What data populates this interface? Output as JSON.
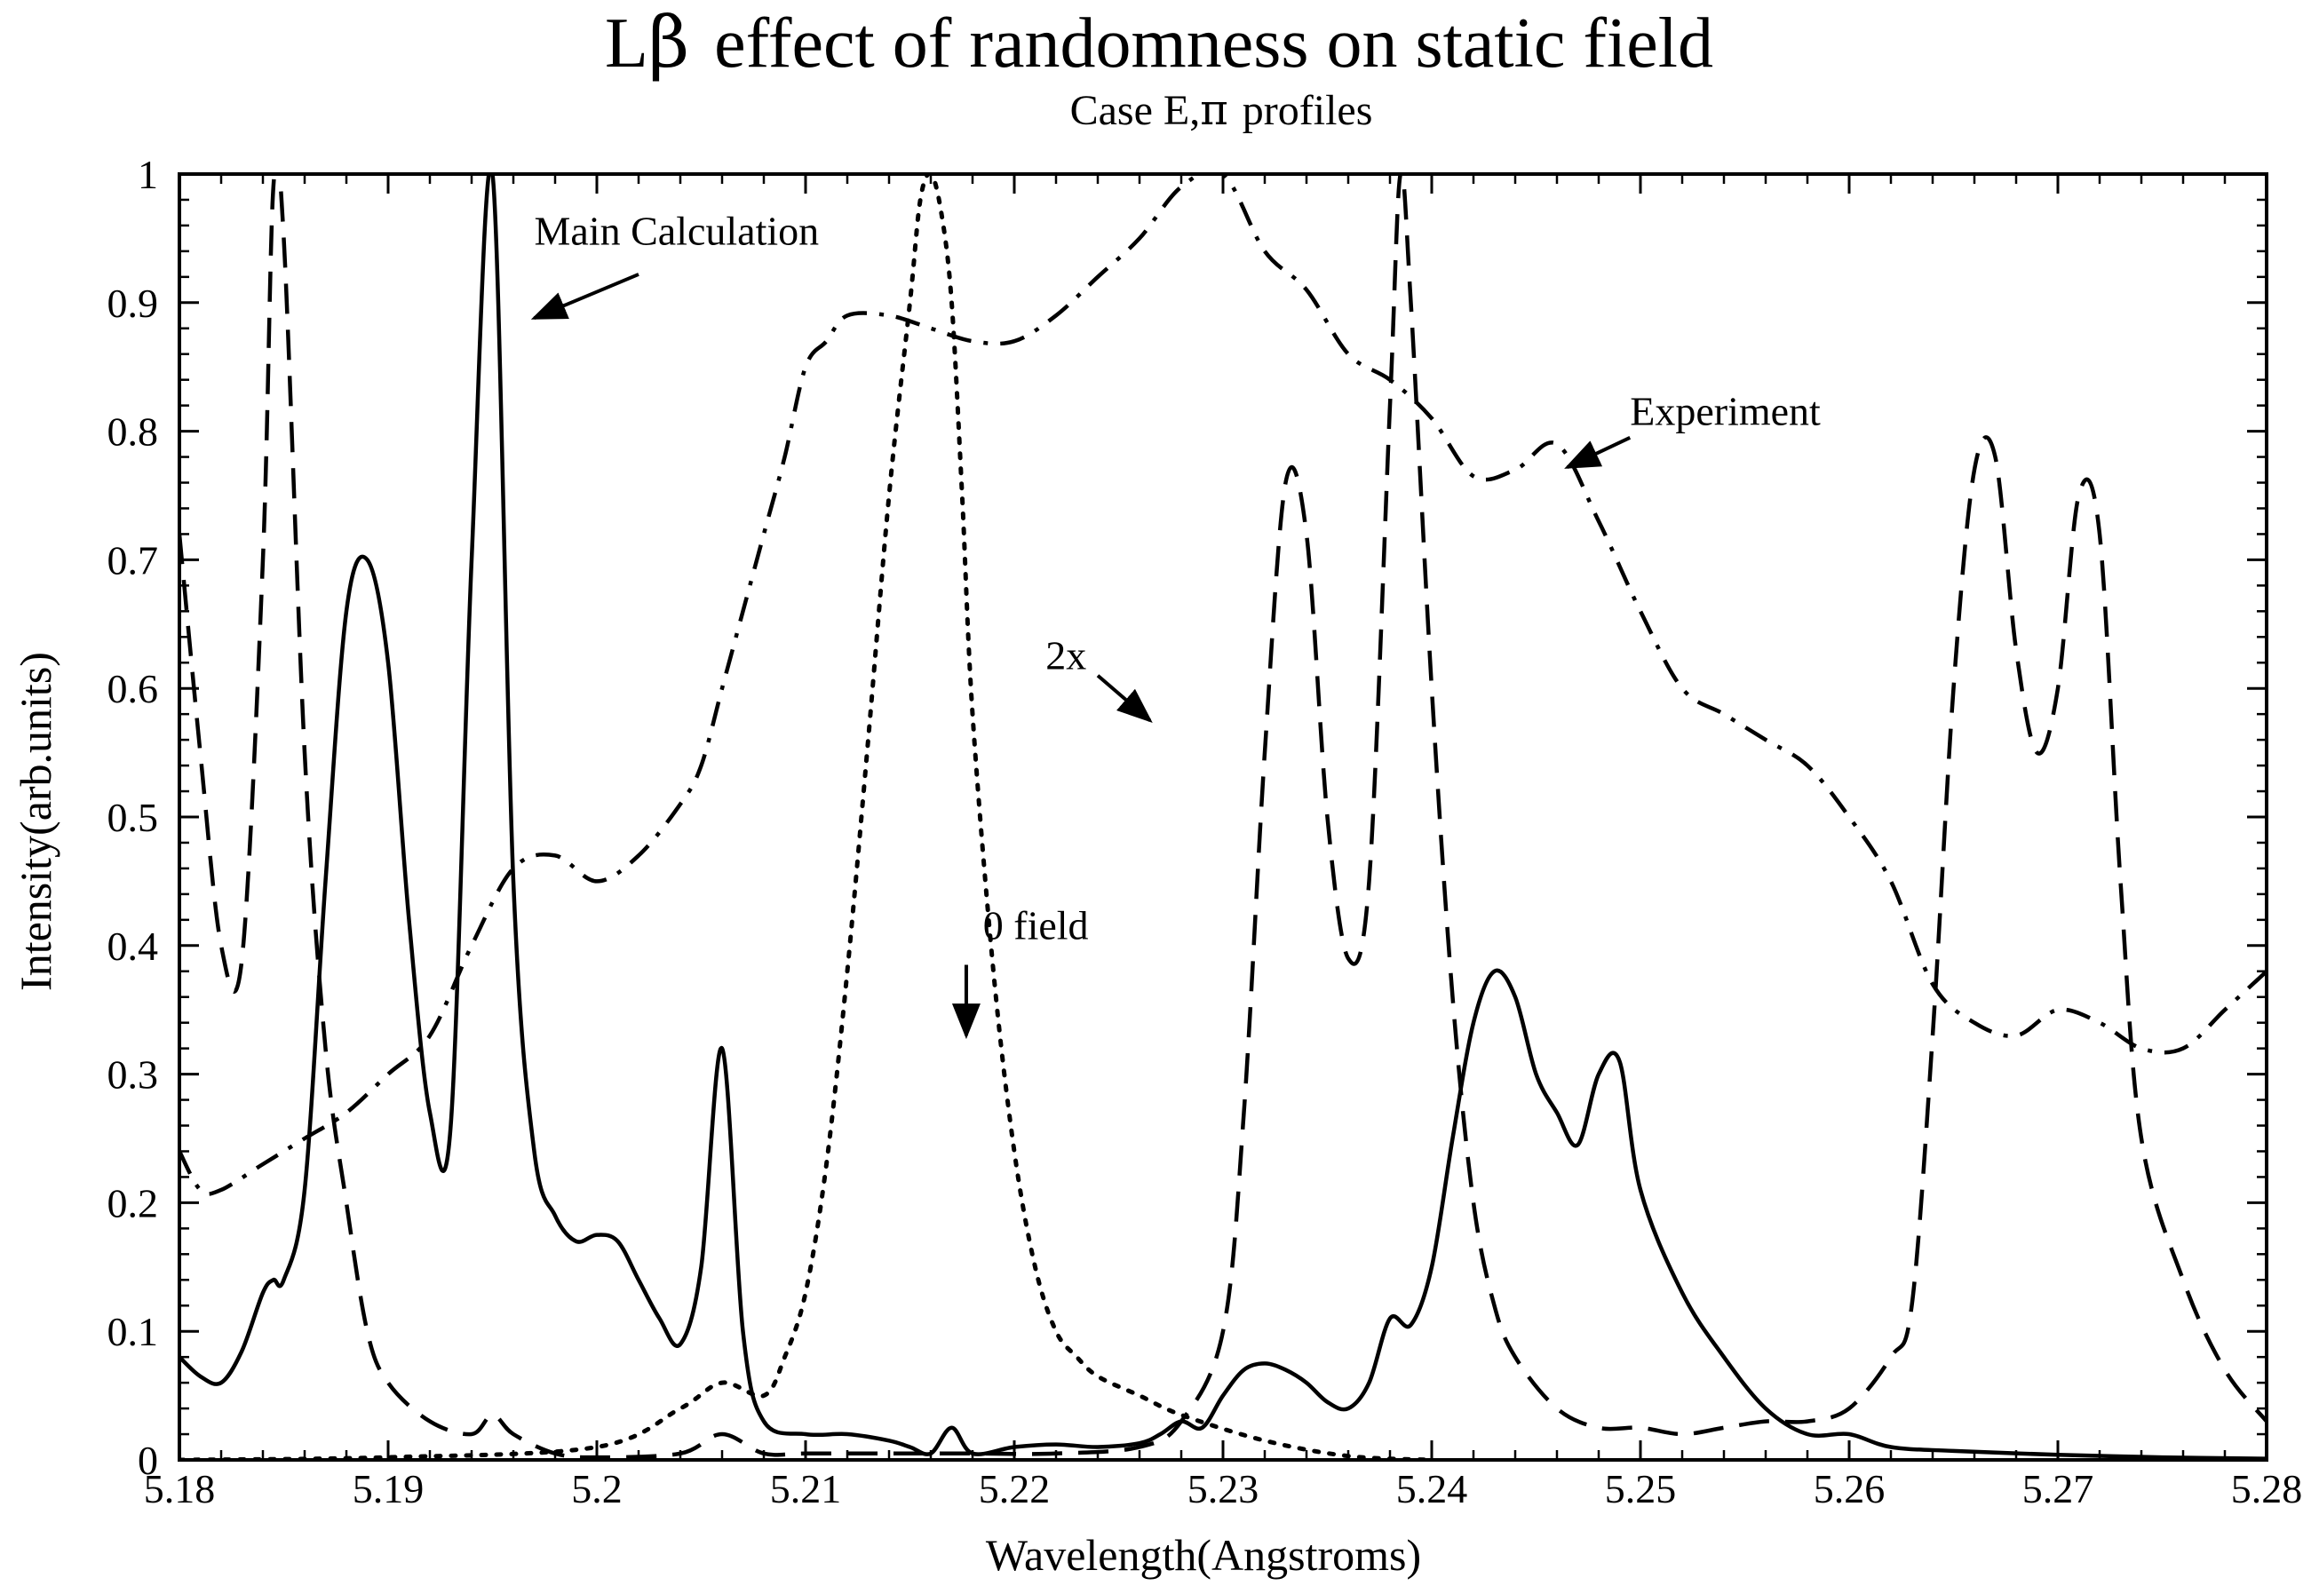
{
  "chart_data": {
    "type": "line",
    "title_prefix": "L",
    "title_symbol": "β",
    "title_rest": "effect of randomness on static field",
    "subtitle_prefix": "Case E,",
    "subtitle_symbol": "π",
    "subtitle_rest": "profiles",
    "xlabel": "Wavelength(Angstroms)",
    "ylabel": "Intensity(arb.units)",
    "xlim": [
      5.18,
      5.28
    ],
    "ylim": [
      0,
      1
    ],
    "x_ticks": [
      5.18,
      5.19,
      5.2,
      5.21,
      5.22,
      5.23,
      5.24,
      5.25,
      5.26,
      5.27,
      5.28
    ],
    "x_tick_labels": [
      "5.18",
      "5.19",
      "5.2",
      "5.21",
      "5.22",
      "5.23",
      "5.24",
      "5.25",
      "5.26",
      "5.27",
      "5.28"
    ],
    "y_ticks": [
      0,
      0.1,
      0.2,
      0.3,
      0.4,
      0.5,
      0.6,
      0.7,
      0.8,
      0.9,
      1
    ],
    "y_tick_labels": [
      "0",
      "0.1",
      "0.2",
      "0.3",
      "0.4",
      "0.5",
      "0.6",
      "0.7",
      "0.8",
      "0.9",
      "1"
    ],
    "grid": false,
    "series": [
      {
        "name": "Main Calculation",
        "style": "solid",
        "x": [
          5.18,
          5.181,
          5.182,
          5.183,
          5.184,
          5.1845,
          5.185,
          5.186,
          5.187,
          5.188,
          5.189,
          5.19,
          5.191,
          5.192,
          5.193,
          5.194,
          5.195,
          5.196,
          5.197,
          5.198,
          5.199,
          5.2,
          5.201,
          5.202,
          5.203,
          5.204,
          5.205,
          5.206,
          5.207,
          5.208,
          5.21,
          5.212,
          5.214,
          5.215,
          5.216,
          5.217,
          5.218,
          5.22,
          5.222,
          5.224,
          5.226,
          5.227,
          5.228,
          5.229,
          5.23,
          5.231,
          5.232,
          5.233,
          5.234,
          5.235,
          5.236,
          5.237,
          5.238,
          5.239,
          5.24,
          5.241,
          5.242,
          5.243,
          5.244,
          5.245,
          5.246,
          5.247,
          5.248,
          5.249,
          5.25,
          5.252,
          5.254,
          5.256,
          5.258,
          5.26,
          5.262,
          5.265,
          5.27,
          5.275,
          5.28
        ],
        "values": [
          0.08,
          0.065,
          0.06,
          0.085,
          0.13,
          0.14,
          0.14,
          0.21,
          0.45,
          0.66,
          0.7,
          0.62,
          0.42,
          0.27,
          0.26,
          0.7,
          1.0,
          0.45,
          0.24,
          0.19,
          0.17,
          0.175,
          0.17,
          0.14,
          0.11,
          0.09,
          0.15,
          0.32,
          0.1,
          0.03,
          0.02,
          0.02,
          0.015,
          0.01,
          0.005,
          0.025,
          0.005,
          0.01,
          0.012,
          0.01,
          0.013,
          0.02,
          0.03,
          0.025,
          0.05,
          0.07,
          0.075,
          0.07,
          0.06,
          0.045,
          0.04,
          0.06,
          0.11,
          0.105,
          0.15,
          0.25,
          0.34,
          0.38,
          0.36,
          0.3,
          0.27,
          0.245,
          0.3,
          0.31,
          0.21,
          0.13,
          0.08,
          0.04,
          0.02,
          0.02,
          0.01,
          0.007,
          0.004,
          0.002,
          0.001
        ]
      },
      {
        "name": "2x",
        "style": "dashed",
        "x": [
          5.18,
          5.181,
          5.182,
          5.183,
          5.184,
          5.1845,
          5.185,
          5.186,
          5.187,
          5.188,
          5.189,
          5.19,
          5.192,
          5.194,
          5.195,
          5.196,
          5.198,
          5.2,
          5.204,
          5.206,
          5.208,
          5.21,
          5.214,
          5.218,
          5.222,
          5.226,
          5.228,
          5.23,
          5.231,
          5.232,
          5.233,
          5.234,
          5.235,
          5.236,
          5.237,
          5.238,
          5.2385,
          5.239,
          5.24,
          5.241,
          5.242,
          5.243,
          5.244,
          5.246,
          5.248,
          5.25,
          5.252,
          5.254,
          5.256,
          5.258,
          5.26,
          5.262,
          5.263,
          5.264,
          5.265,
          5.266,
          5.267,
          5.268,
          5.269,
          5.27,
          5.271,
          5.272,
          5.273,
          5.274,
          5.276,
          5.278,
          5.28
        ],
        "values": [
          0.72,
          0.55,
          0.4,
          0.39,
          0.7,
          0.99,
          0.95,
          0.55,
          0.32,
          0.2,
          0.1,
          0.06,
          0.03,
          0.02,
          0.035,
          0.02,
          0.005,
          0.002,
          0.005,
          0.02,
          0.005,
          0.005,
          0.005,
          0.005,
          0.005,
          0.01,
          0.03,
          0.1,
          0.27,
          0.55,
          0.76,
          0.72,
          0.5,
          0.39,
          0.45,
          0.82,
          1.0,
          0.9,
          0.6,
          0.36,
          0.2,
          0.12,
          0.08,
          0.04,
          0.025,
          0.025,
          0.02,
          0.025,
          0.03,
          0.03,
          0.04,
          0.08,
          0.12,
          0.33,
          0.6,
          0.77,
          0.78,
          0.63,
          0.55,
          0.6,
          0.75,
          0.72,
          0.45,
          0.25,
          0.14,
          0.07,
          0.03
        ]
      },
      {
        "name": "0 field",
        "style": "dotted",
        "x": [
          5.18,
          5.19,
          5.2,
          5.204,
          5.206,
          5.208,
          5.209,
          5.21,
          5.211,
          5.212,
          5.213,
          5.214,
          5.215,
          5.2155,
          5.216,
          5.2165,
          5.217,
          5.2175,
          5.218,
          5.219,
          5.22,
          5.221,
          5.222,
          5.223,
          5.224,
          5.226,
          5.228,
          5.232,
          5.236,
          5.24
        ],
        "values": [
          0.0,
          0.002,
          0.01,
          0.04,
          0.06,
          0.05,
          0.08,
          0.13,
          0.23,
          0.38,
          0.56,
          0.75,
          0.9,
          0.98,
          1.0,
          0.97,
          0.9,
          0.75,
          0.58,
          0.38,
          0.24,
          0.15,
          0.1,
          0.08,
          0.065,
          0.05,
          0.035,
          0.015,
          0.003,
          0.0
        ]
      },
      {
        "name": "Experiment",
        "style": "dashdot",
        "x": [
          5.18,
          5.181,
          5.182,
          5.184,
          5.186,
          5.188,
          5.19,
          5.192,
          5.194,
          5.196,
          5.198,
          5.2,
          5.202,
          5.204,
          5.205,
          5.206,
          5.207,
          5.208,
          5.209,
          5.21,
          5.211,
          5.212,
          5.214,
          5.216,
          5.218,
          5.22,
          5.222,
          5.224,
          5.226,
          5.228,
          5.23,
          5.232,
          5.234,
          5.236,
          5.238,
          5.24,
          5.242,
          5.244,
          5.246,
          5.248,
          5.25,
          5.252,
          5.254,
          5.256,
          5.258,
          5.26,
          5.262,
          5.264,
          5.266,
          5.268,
          5.27,
          5.272,
          5.274,
          5.276,
          5.278,
          5.28
        ],
        "values": [
          0.24,
          0.21,
          0.21,
          0.23,
          0.25,
          0.27,
          0.3,
          0.33,
          0.4,
          0.46,
          0.47,
          0.45,
          0.47,
          0.51,
          0.54,
          0.6,
          0.66,
          0.72,
          0.78,
          0.85,
          0.87,
          0.89,
          0.89,
          0.88,
          0.87,
          0.87,
          0.89,
          0.92,
          0.95,
          0.99,
          1.0,
          0.94,
          0.91,
          0.86,
          0.84,
          0.81,
          0.765,
          0.77,
          0.79,
          0.73,
          0.66,
          0.6,
          0.58,
          0.56,
          0.54,
          0.5,
          0.45,
          0.37,
          0.34,
          0.33,
          0.35,
          0.34,
          0.32,
          0.32,
          0.35,
          0.38
        ]
      }
    ],
    "annotations": [
      {
        "text": "Main Calculation",
        "tx": 5.197,
        "ty": 0.945,
        "ax1": 5.202,
        "ay1": 0.922,
        "ax2": 5.197,
        "ay2": 0.888
      },
      {
        "text": "Experiment",
        "tx": 5.2495,
        "ty": 0.805,
        "ax1": 5.2495,
        "ay1": 0.795,
        "ax2": 5.2465,
        "ay2": 0.772
      },
      {
        "text": "2x",
        "tx": 5.2215,
        "ty": 0.615,
        "ax1": 5.224,
        "ay1": 0.61,
        "ax2": 5.2265,
        "ay2": 0.575
      },
      {
        "text": "0 field",
        "tx": 5.2185,
        "ty": 0.405,
        "ax1": 5.2177,
        "ay1": 0.385,
        "ax2": 5.2177,
        "ay2": 0.33
      }
    ]
  }
}
